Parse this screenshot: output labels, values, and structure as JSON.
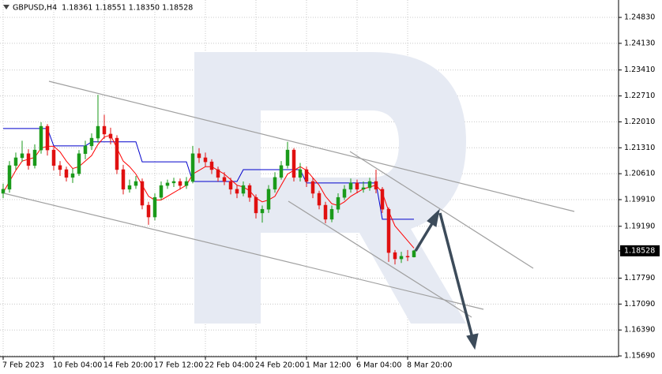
{
  "chart_data": {
    "type": "candlestick",
    "title": "GBPUSD,H4  1.18361 1.18551 1.18350 1.18528",
    "categories": [
      "7 Feb 2023",
      null,
      null,
      null,
      null,
      null,
      null,
      null,
      "10 Feb 04:00",
      null,
      null,
      null,
      null,
      null,
      null,
      null,
      "14 Feb 20:00",
      null,
      null,
      null,
      null,
      null,
      null,
      null,
      "17 Feb 12:00",
      null,
      null,
      null,
      null,
      null,
      null,
      null,
      "22 Feb 04:00",
      null,
      null,
      null,
      null,
      null,
      null,
      null,
      "24 Feb 20:00",
      null,
      null,
      null,
      null,
      null,
      null,
      null,
      "1 Mar 12:00",
      null,
      null,
      null,
      null,
      null,
      null,
      null,
      "6 Mar 04:00",
      null,
      null,
      null,
      null,
      null,
      null,
      null,
      "8 Mar 20:00",
      null
    ],
    "open": [
      1.2008,
      1.2019,
      1.2083,
      1.2104,
      1.2115,
      1.2083,
      1.2125,
      1.2189,
      1.2125,
      1.2083,
      1.2072,
      1.2051,
      1.2061,
      1.2115,
      1.2136,
      1.2157,
      1.2189,
      1.2168,
      1.2157,
      1.2072,
      1.2019,
      1.2029,
      1.204,
      1.1976,
      1.1944,
      1.1997,
      1.2029,
      1.2036,
      1.204,
      1.2029,
      1.204,
      1.2115,
      1.2104,
      1.2093,
      1.2072,
      1.2051,
      1.204,
      1.2019,
      1.2008,
      1.2029,
      1.1997,
      1.1955,
      1.1965,
      1.2019,
      1.2051,
      1.2083,
      1.2125,
      1.2051,
      1.2072,
      1.204,
      1.2008,
      1.1976,
      1.1938,
      1.1965,
      1.1997,
      1.2019,
      1.2036,
      1.2019,
      1.2023,
      1.204,
      1.2019,
      1.1965,
      1.1848,
      1.1831,
      1.1838,
      1.18361
    ],
    "high": [
      1.2034,
      1.2095,
      1.2118,
      1.215,
      1.2127,
      1.214,
      1.22,
      1.2195,
      1.2133,
      1.2095,
      1.208,
      1.2075,
      1.2125,
      1.215,
      1.217,
      1.2274,
      1.222,
      1.2185,
      1.2165,
      1.2085,
      1.2045,
      1.2055,
      1.2048,
      1.1985,
      1.2008,
      1.204,
      1.2045,
      1.205,
      1.2048,
      1.2052,
      1.2136,
      1.213,
      1.2118,
      1.21,
      1.208,
      1.2065,
      1.205,
      1.203,
      1.204,
      1.2035,
      1.2005,
      1.1975,
      1.203,
      1.2065,
      1.2095,
      1.2147,
      1.213,
      1.209,
      1.208,
      1.205,
      1.2015,
      1.1985,
      1.1975,
      1.2008,
      1.203,
      1.2048,
      1.2045,
      1.204,
      1.205,
      1.2072,
      1.2025,
      1.197,
      1.1855,
      1.185,
      1.1855,
      1.18551
    ],
    "low": [
      1.1995,
      1.201,
      1.2072,
      1.2093,
      1.2072,
      1.2075,
      1.2115,
      1.211,
      1.207,
      1.2055,
      1.204,
      1.2036,
      1.2055,
      1.21,
      1.2125,
      1.2145,
      1.2155,
      1.214,
      1.206,
      1.2005,
      1.201,
      1.202,
      1.1965,
      1.1923,
      1.1935,
      1.199,
      1.202,
      1.2025,
      1.2018,
      1.202,
      1.2035,
      1.209,
      1.208,
      1.206,
      1.204,
      1.203,
      1.2005,
      1.1995,
      1.2,
      1.1985,
      1.194,
      1.1929,
      1.1955,
      1.201,
      1.2045,
      1.2075,
      1.204,
      1.204,
      1.2025,
      1.1995,
      1.1965,
      1.1927,
      1.193,
      1.1955,
      1.199,
      1.201,
      1.2008,
      1.201,
      1.2015,
      1.2008,
      1.1955,
      1.1823,
      1.1816,
      1.182,
      1.1825,
      1.1835
    ],
    "close": [
      1.2019,
      1.2083,
      1.2104,
      1.2115,
      1.2083,
      1.2125,
      1.2189,
      1.2125,
      1.2083,
      1.2072,
      1.2051,
      1.2061,
      1.2115,
      1.2136,
      1.2157,
      1.2189,
      1.2168,
      1.2157,
      1.2072,
      1.2019,
      1.2029,
      1.204,
      1.1976,
      1.1944,
      1.1997,
      1.2029,
      1.2036,
      1.204,
      1.2029,
      1.204,
      1.2115,
      1.2104,
      1.2093,
      1.2072,
      1.2051,
      1.204,
      1.2019,
      1.2008,
      1.2029,
      1.1997,
      1.1955,
      1.1965,
      1.2019,
      1.2051,
      1.2083,
      1.2125,
      1.2051,
      1.2072,
      1.204,
      1.2008,
      1.1976,
      1.1938,
      1.1965,
      1.1997,
      1.2019,
      1.2036,
      1.2019,
      1.2023,
      1.204,
      1.2019,
      1.1965,
      1.1848,
      1.1831,
      1.1838,
      1.18361,
      1.18528
    ],
    "up_color": "#1a9a1a",
    "down_color": "#e01010",
    "lines": [
      {
        "color": "#0000cc",
        "values": [
          1.2183,
          1.2183,
          1.2183,
          1.2183,
          1.2183,
          1.2183,
          1.2183,
          1.2183,
          1.2136,
          1.2136,
          1.2136,
          1.2136,
          1.2136,
          1.2136,
          1.2147,
          1.2147,
          1.2147,
          1.2147,
          1.2147,
          1.2147,
          1.2147,
          1.2147,
          1.2093,
          1.2093,
          1.2093,
          1.2093,
          1.2093,
          1.2093,
          1.2093,
          1.2093,
          1.204,
          1.204,
          1.204,
          1.204,
          1.204,
          1.204,
          1.204,
          1.204,
          1.2072,
          1.2072,
          1.2072,
          1.2072,
          1.2072,
          1.2072,
          1.2072,
          1.2072,
          1.2072,
          1.2072,
          1.2036,
          1.2036,
          1.2036,
          1.2036,
          1.2036,
          1.2036,
          1.2036,
          1.2036,
          1.2036,
          1.2036,
          1.2036,
          1.2036,
          1.1938,
          1.1938,
          1.1938,
          1.1938,
          1.1938,
          1.1938
        ]
      },
      {
        "color": "#ff0000",
        "values": [
          1.201,
          1.204,
          1.207,
          1.2095,
          1.21,
          1.2105,
          1.213,
          1.2135,
          1.2135,
          1.212,
          1.2095,
          1.2075,
          1.208,
          1.2095,
          1.211,
          1.214,
          1.216,
          1.2165,
          1.213,
          1.2095,
          1.208,
          1.206,
          1.203,
          1.2,
          1.199,
          1.199,
          1.2,
          1.201,
          1.202,
          1.203,
          1.206,
          1.207,
          1.208,
          1.208,
          1.207,
          1.206,
          1.2045,
          1.203,
          1.2025,
          1.2015,
          1.1995,
          1.1985,
          1.199,
          1.2,
          1.203,
          1.206,
          1.207,
          1.208,
          1.207,
          1.205,
          1.203,
          1.2,
          1.198,
          1.1975,
          1.1985,
          1.2,
          1.201,
          1.202,
          1.2025,
          1.203,
          1.201,
          1.196,
          1.192,
          1.19,
          1.188,
          1.186
        ]
      }
    ],
    "last_price": 1.18528,
    "ylim": [
      1.1567,
      1.253
    ],
    "yticks": [
      {
        "value": 1.2483,
        "label": "1.24830"
      },
      {
        "value": 1.2413,
        "label": "1.24130"
      },
      {
        "value": 1.2341,
        "label": "1.23410"
      },
      {
        "value": 1.2271,
        "label": "1.22710"
      },
      {
        "value": 1.2201,
        "label": "1.22010"
      },
      {
        "value": 1.2131,
        "label": "1.21310"
      },
      {
        "value": 1.2061,
        "label": "1.20610"
      },
      {
        "value": 1.1991,
        "label": "1.19910"
      },
      {
        "value": 1.1919,
        "label": "1.19190"
      },
      {
        "value": 1.1779,
        "label": "1.17790"
      },
      {
        "value": 1.1709,
        "label": "1.17090"
      },
      {
        "value": 1.1639,
        "label": "1.16390"
      },
      {
        "value": 1.1569,
        "label": "1.15690"
      }
    ],
    "grid": true
  }
}
